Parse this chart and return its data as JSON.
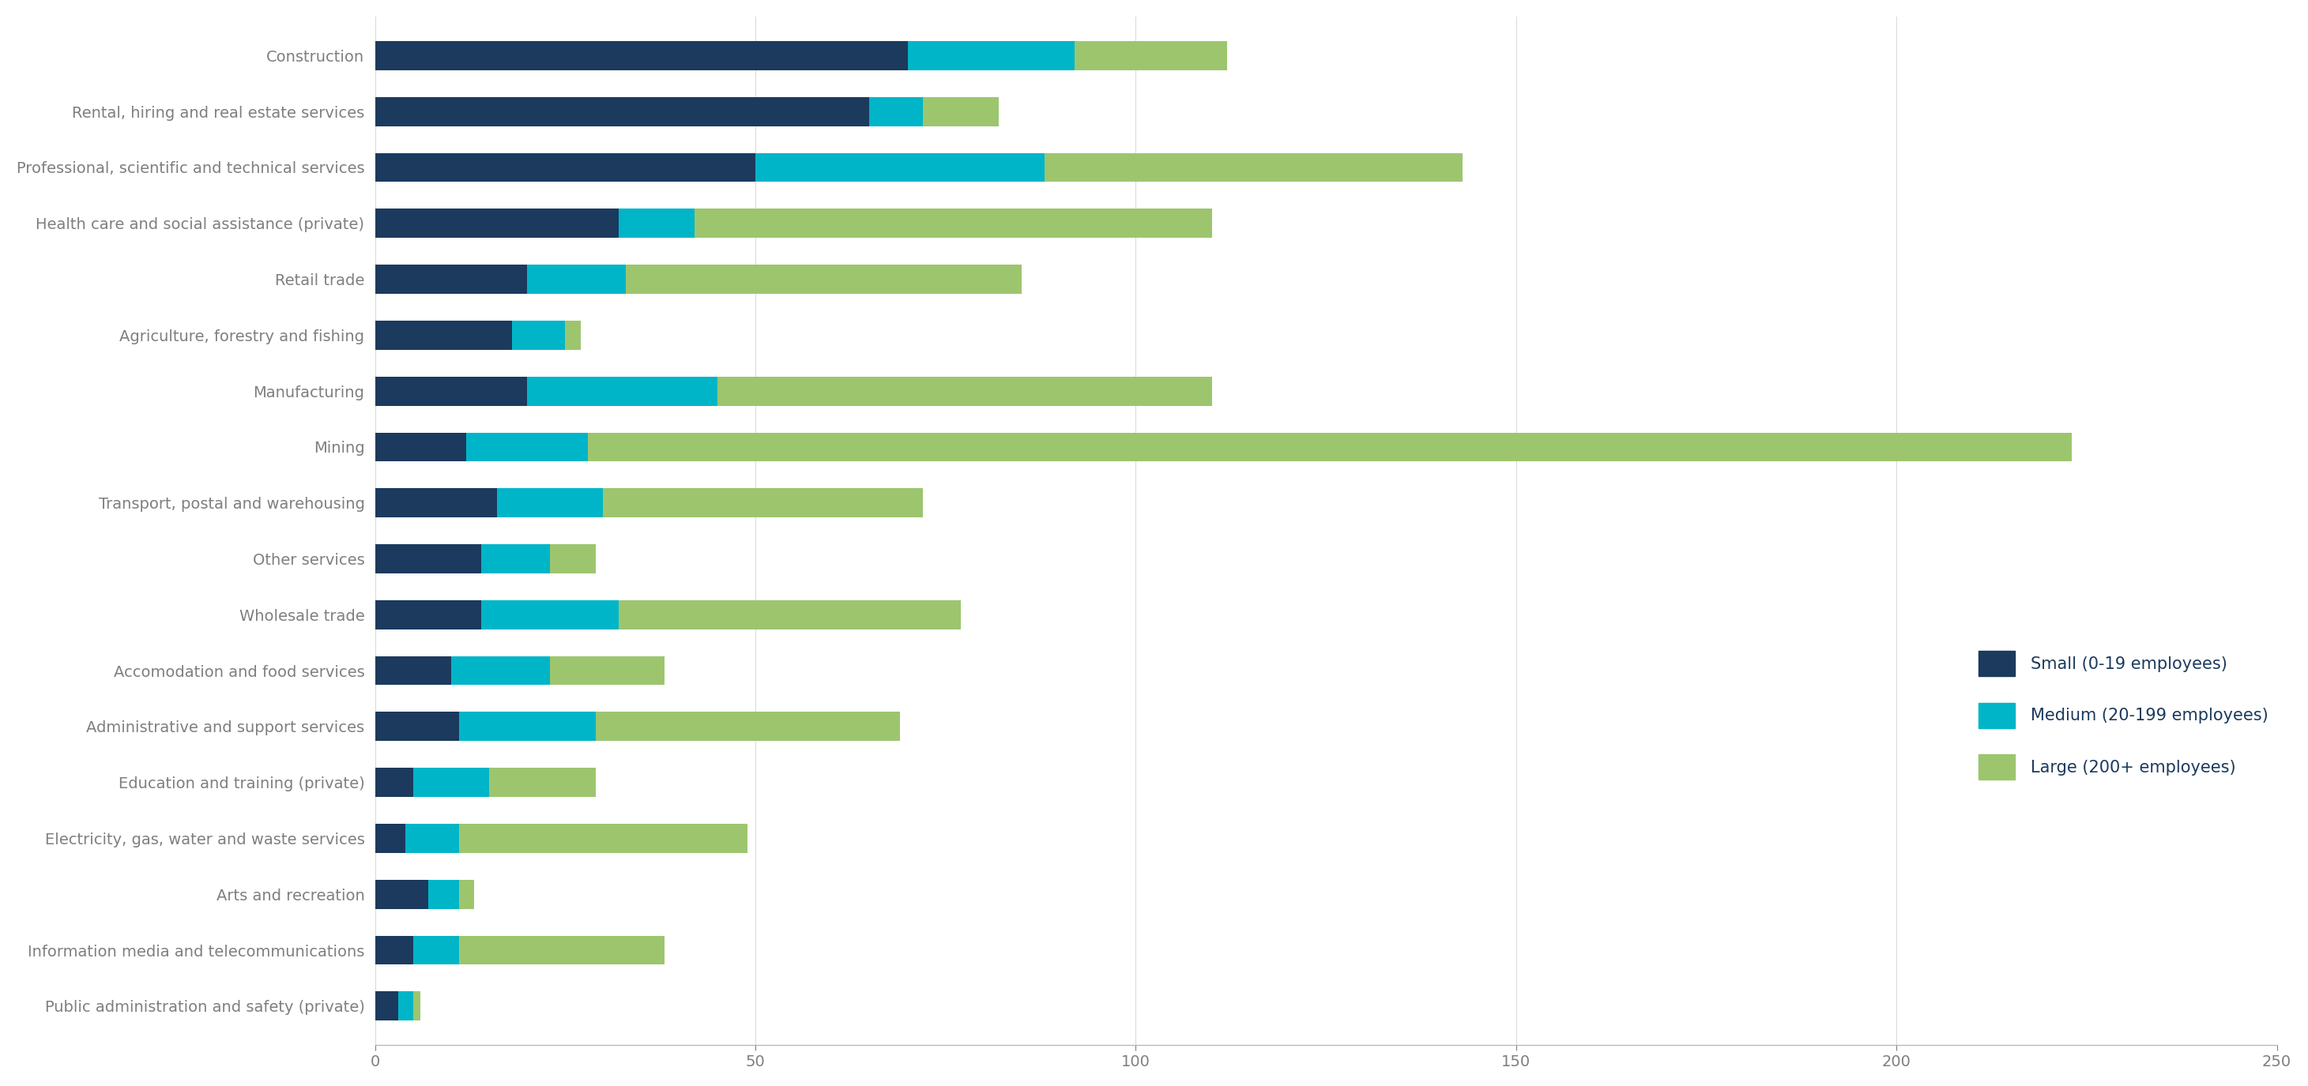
{
  "categories": [
    "Construction",
    "Rental, hiring and real estate services",
    "Professional, scientific and technical services",
    "Health care and social assistance (private)",
    "Retail trade",
    "Agriculture, forestry and fishing",
    "Manufacturing",
    "Mining",
    "Transport, postal and warehousing",
    "Other services",
    "Wholesale trade",
    "Accomodation and food services",
    "Administrative and support services",
    "Education and training (private)",
    "Electricity, gas, water and waste services",
    "Arts and recreation",
    "Information media and telecommunications",
    "Public administration and safety (private)"
  ],
  "small": [
    70,
    65,
    50,
    32,
    20,
    18,
    20,
    12,
    16,
    14,
    14,
    10,
    11,
    5,
    4,
    7,
    5,
    3
  ],
  "medium": [
    22,
    7,
    38,
    10,
    13,
    7,
    25,
    16,
    14,
    9,
    18,
    13,
    18,
    10,
    7,
    4,
    6,
    2
  ],
  "large": [
    20,
    10,
    55,
    68,
    52,
    2,
    65,
    195,
    42,
    6,
    45,
    15,
    40,
    14,
    38,
    2,
    27,
    1
  ],
  "colors": {
    "small": "#1b3a5e",
    "medium": "#00b5c8",
    "large": "#9dc56e"
  },
  "legend_labels": [
    "Small (0-19 employees)",
    "Medium (20-199 employees)",
    "Large (200+ employees)"
  ],
  "xlim": [
    0,
    250
  ],
  "xticks": [
    0,
    50,
    100,
    150,
    200,
    250
  ],
  "background_color": "#ffffff",
  "label_fontsize": 14
}
